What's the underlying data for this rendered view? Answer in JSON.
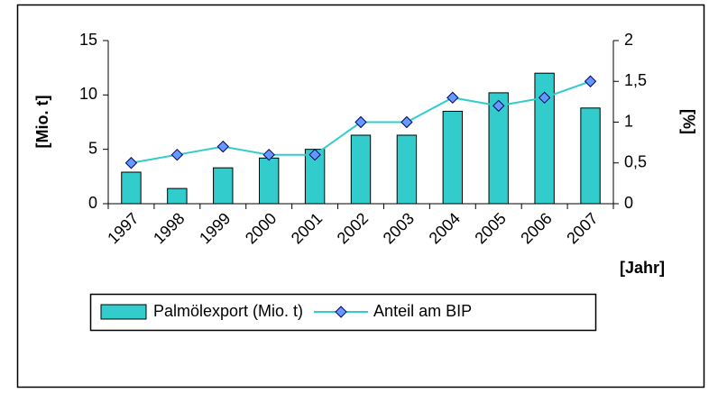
{
  "chart_data": {
    "type": "combo",
    "categories": [
      "1997",
      "1998",
      "1999",
      "2000",
      "2001",
      "2002",
      "2003",
      "2004",
      "2005",
      "2006",
      "2007"
    ],
    "series": [
      {
        "name": "Palmölexport (Mio. t)",
        "type": "bar",
        "color": "#33cccc",
        "values": [
          2.9,
          1.4,
          3.3,
          4.2,
          5.0,
          6.3,
          6.3,
          8.5,
          10.2,
          12.0,
          8.8
        ]
      },
      {
        "name": "Anteil am BIP",
        "type": "line",
        "axis": "y2",
        "color": "#33cccc",
        "marker_color": "#6699ff",
        "values": [
          0.5,
          0.6,
          0.7,
          0.6,
          0.6,
          1.0,
          1.0,
          1.3,
          1.2,
          1.3,
          1.5
        ]
      }
    ],
    "ylabel": "[Mio. t]",
    "y2label": "[%]",
    "xlabel": "[Jahr]",
    "ylim": [
      0,
      15
    ],
    "yticks": [
      0,
      5,
      10,
      15
    ],
    "y2lim": [
      0,
      2
    ],
    "y2ticks": [
      0,
      {
        "value": 0.5,
        "label": "0,5"
      },
      1,
      {
        "value": 1.5,
        "label": "1,5"
      },
      2
    ],
    "legend": "bottom",
    "grid": false
  }
}
